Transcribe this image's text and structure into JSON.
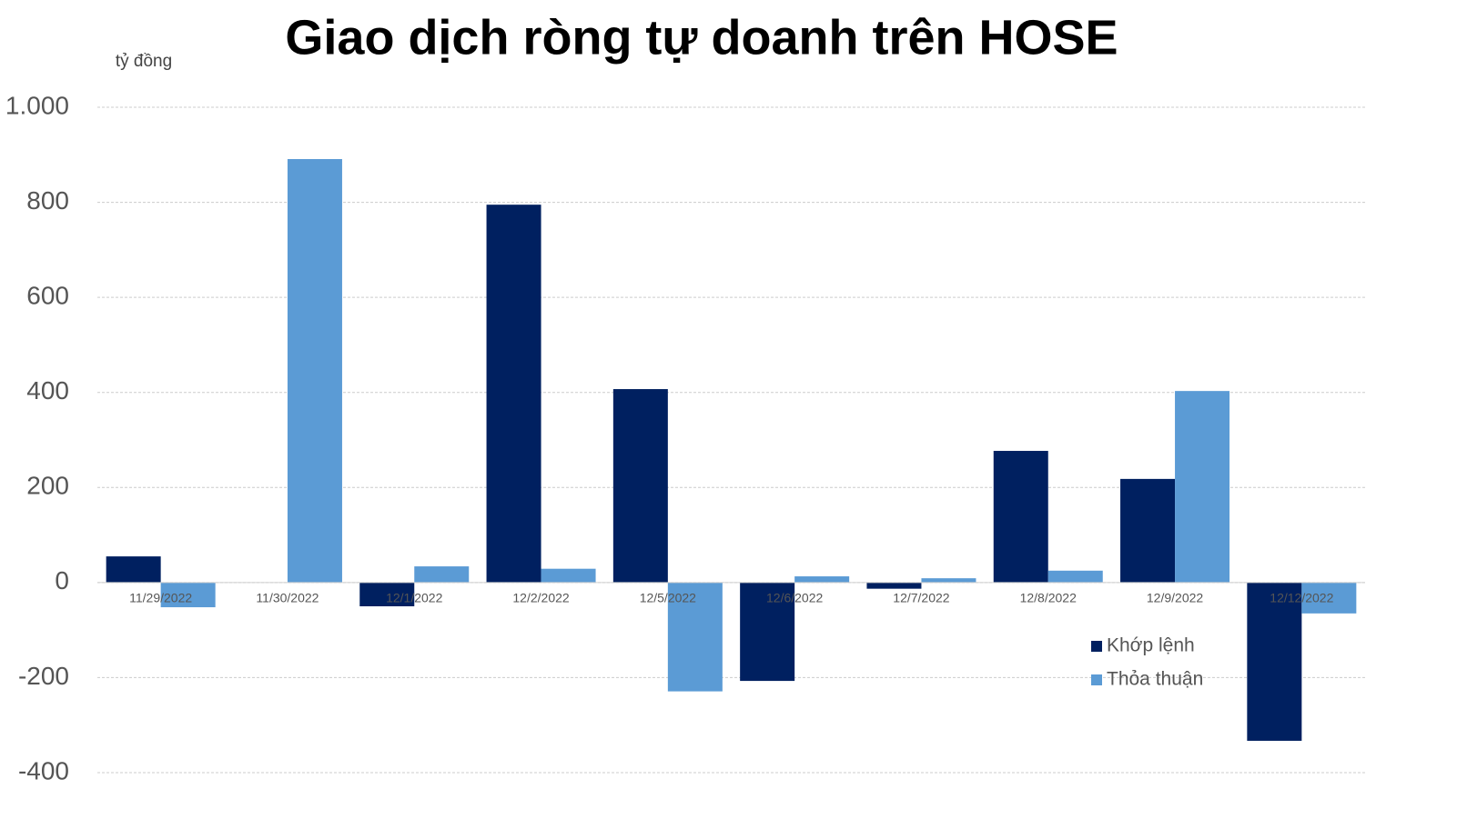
{
  "chart_data": {
    "type": "bar",
    "title": "Giao dịch ròng tự doanh trên HOSE",
    "y_label": "tỷ đồng",
    "categories": [
      "11/29/2022",
      "11/30/2022",
      "12/1/2022",
      "12/2/2022",
      "12/5/2022",
      "12/6/2022",
      "12/7/2022",
      "12/8/2022",
      "12/9/2022",
      "12/12/2022"
    ],
    "series": [
      {
        "name": "Khớp lệnh",
        "color": "#002060",
        "values": [
          55,
          0,
          -50,
          795,
          407,
          -207,
          -13,
          277,
          218,
          -333
        ]
      },
      {
        "name": "Thỏa thuận",
        "color": "#5b9bd5",
        "values": [
          -52,
          891,
          34,
          29,
          -229,
          13,
          9,
          25,
          403,
          -65
        ]
      }
    ],
    "ylim": [
      -400,
      1000
    ],
    "yticks": [
      -400,
      -200,
      0,
      200,
      400,
      600,
      800,
      {
        "value": 1000,
        "label": "1.000"
      }
    ],
    "grid": true,
    "legend": "right"
  }
}
